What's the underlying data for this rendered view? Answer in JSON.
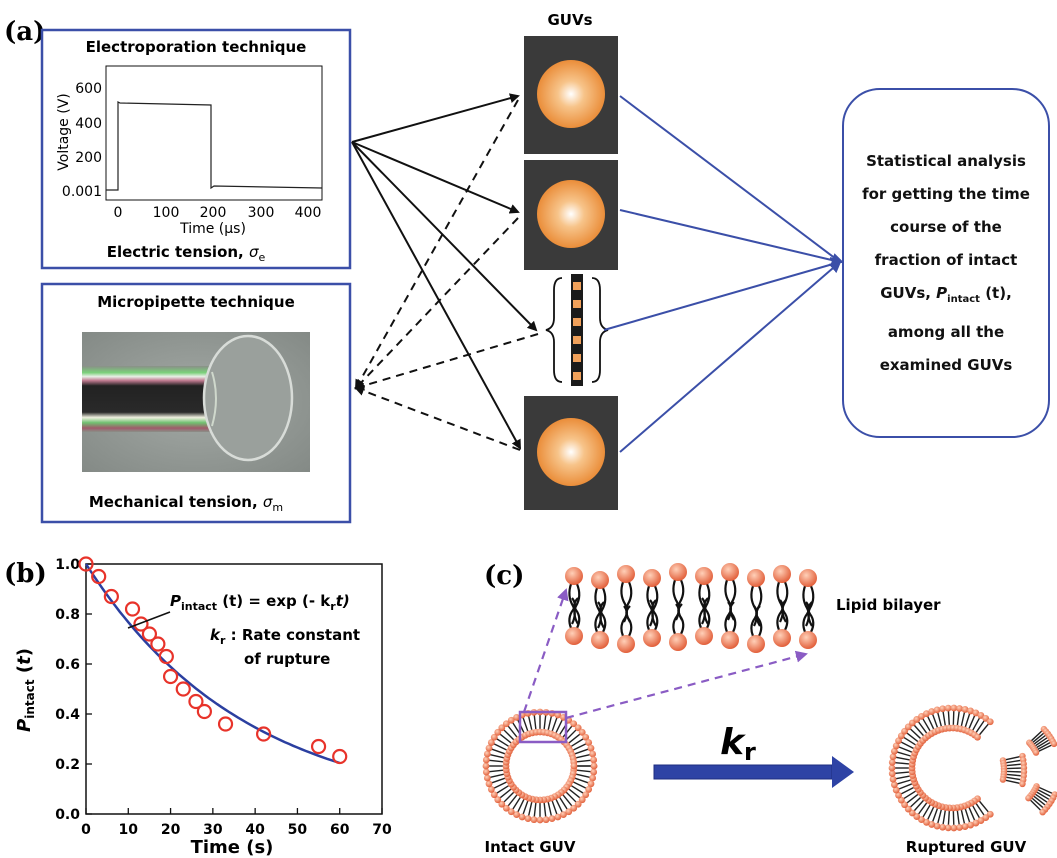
{
  "panel_a": {
    "label": "(a)",
    "electroporation": {
      "title": "Electroporation technique",
      "ylabel": "Voltage (V)",
      "xlabel": "Time (μs)",
      "yticks": [
        "0.001",
        "200",
        "400",
        "600"
      ],
      "xticks": [
        "0",
        "100",
        "200",
        "300",
        "400"
      ],
      "caption_text": "Electric tension, ",
      "caption_sym": "σ",
      "caption_sub": "e"
    },
    "micropipette": {
      "title": "Micropipette technique",
      "caption_text": "Mechanical tension, ",
      "caption_sym": "σ",
      "caption_sub": "m"
    },
    "guvs_title": "GUVs",
    "stat_lines": [
      "Statistical analysis",
      "for getting the time",
      "course of the",
      "fraction of intact",
      "GUVs, P_intact (t),",
      "among all the",
      "examined GUVs"
    ],
    "stat_p": "P",
    "stat_sub": "intact",
    "stat_tail": " (t),",
    "stat_head": "GUVs, "
  },
  "panel_b": {
    "label": "(b)",
    "eq_p": "P",
    "eq_sub": "intact",
    "eq_rest": " (t) = exp (- k",
    "eq_r": "r",
    "eq_t": "t)",
    "k_line1_k": "k",
    "k_line1_r": "r",
    "k_line1_rest": " : Rate constant",
    "k_line2": "of rupture"
  },
  "panel_c": {
    "label": "(c)",
    "bilayer_label": "Lipid bilayer",
    "rate_k": "k",
    "rate_r": "r",
    "intact_label": "Intact GUV",
    "ruptured_label": "Ruptured GUV"
  },
  "colors": {
    "frame": "#3b4fa8",
    "arrow_blue": "#3b4fa8",
    "guv_dark": "#3a3a3a",
    "guv_orange": "#e8923a",
    "fit_line": "#2b3fa0",
    "data_red": "#e8332a",
    "lipid_head": "#e8734f",
    "dashed_purple": "#8a5cc4",
    "rate_arrow": "#2e43a5"
  },
  "chart_data": {
    "type": "scatter",
    "xlabel": "Time (s)",
    "ylabel": "P_intact (t)",
    "xlim": [
      0,
      70
    ],
    "ylim": [
      0.0,
      1.0
    ],
    "xticks": [
      0,
      10,
      20,
      30,
      40,
      50,
      60,
      70
    ],
    "yticks": [
      0.0,
      0.2,
      0.4,
      0.6,
      0.8,
      1.0
    ],
    "series": [
      {
        "kind": "points",
        "x": [
          0,
          3,
          6,
          11,
          13,
          15,
          17,
          19,
          20,
          23,
          26,
          28,
          33,
          42,
          55,
          60
        ],
        "y": [
          1.0,
          0.95,
          0.87,
          0.82,
          0.76,
          0.72,
          0.68,
          0.63,
          0.55,
          0.5,
          0.45,
          0.41,
          0.36,
          0.32,
          0.27,
          0.23
        ]
      },
      {
        "kind": "fit",
        "function": "exp(-kr*t)",
        "kr": 0.0265
      }
    ]
  }
}
